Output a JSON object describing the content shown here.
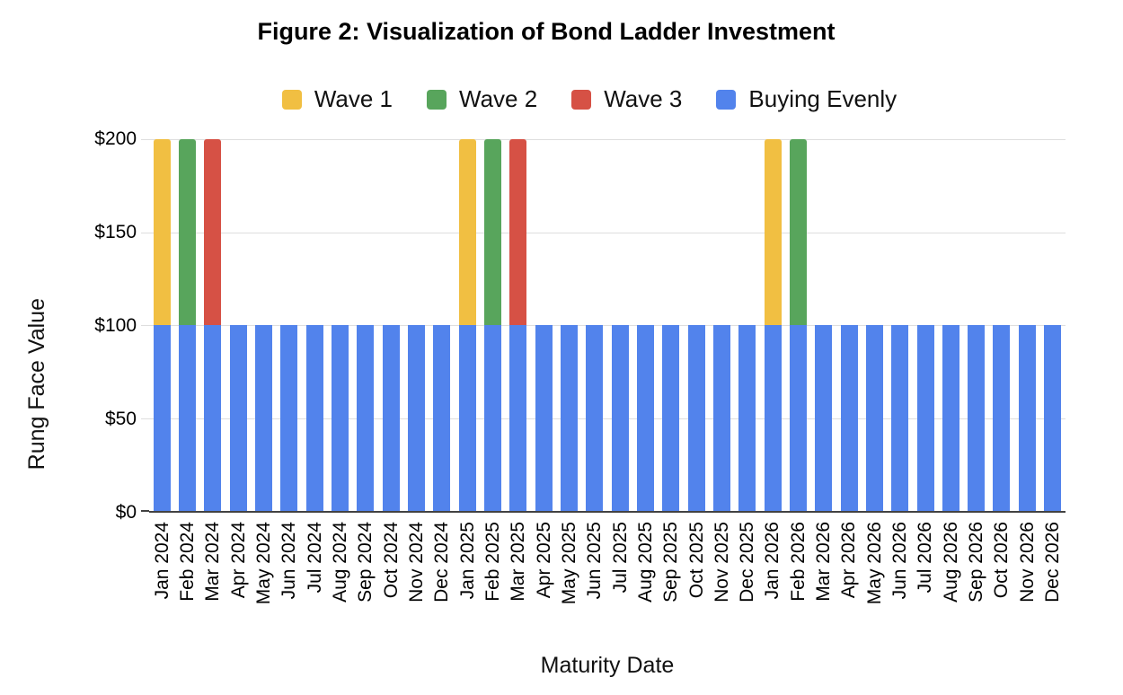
{
  "figure": {
    "title": "Figure 2: Visualization of Bond Ladder Investment"
  },
  "chart_data": {
    "type": "bar",
    "stacked": true,
    "title": "Figure 2: Visualization of Bond Ladder Investment",
    "xlabel": "Maturity Date",
    "ylabel": "Rung Face Value",
    "ylim": [
      0,
      200
    ],
    "ytick_labels": [
      "$0",
      "$50",
      "$100",
      "$150",
      "$200"
    ],
    "grid": true,
    "legend_position": "top",
    "categories": [
      "Jan 2024",
      "Feb 2024",
      "Mar 2024",
      "Apr 2024",
      "May 2024",
      "Jun 2024",
      "Jul 2024",
      "Aug 2024",
      "Sep 2024",
      "Oct 2024",
      "Nov 2024",
      "Dec 2024",
      "Jan 2025",
      "Feb 2025",
      "Mar 2025",
      "Apr 2025",
      "May 2025",
      "Jun 2025",
      "Jul 2025",
      "Aug 2025",
      "Sep 2025",
      "Oct 2025",
      "Nov 2025",
      "Dec 2025",
      "Jan 2026",
      "Feb 2026",
      "Mar 2026",
      "Apr 2026",
      "May 2026",
      "Jun 2026",
      "Jul 2026",
      "Aug 2026",
      "Sep 2026",
      "Oct 2026",
      "Nov 2026",
      "Dec 2026"
    ],
    "series": [
      {
        "name": "Wave 1",
        "color": "#F1BF42",
        "values": [
          100,
          0,
          0,
          0,
          0,
          0,
          0,
          0,
          0,
          0,
          0,
          0,
          100,
          0,
          0,
          0,
          0,
          0,
          0,
          0,
          0,
          0,
          0,
          0,
          100,
          0,
          0,
          0,
          0,
          0,
          0,
          0,
          0,
          0,
          0,
          0
        ]
      },
      {
        "name": "Wave 2",
        "color": "#58A55C",
        "values": [
          0,
          100,
          0,
          0,
          0,
          0,
          0,
          0,
          0,
          0,
          0,
          0,
          0,
          100,
          0,
          0,
          0,
          0,
          0,
          0,
          0,
          0,
          0,
          0,
          0,
          100,
          0,
          0,
          0,
          0,
          0,
          0,
          0,
          0,
          0,
          0
        ]
      },
      {
        "name": "Wave 3",
        "color": "#D65145",
        "values": [
          0,
          0,
          100,
          0,
          0,
          0,
          0,
          0,
          0,
          0,
          0,
          0,
          0,
          0,
          100,
          0,
          0,
          0,
          0,
          0,
          0,
          0,
          0,
          0,
          0,
          0,
          0,
          0,
          0,
          0,
          0,
          0,
          0,
          0,
          0,
          0
        ]
      },
      {
        "name": "Buying Evenly",
        "color": "#5283EC",
        "values": [
          100,
          100,
          100,
          100,
          100,
          100,
          100,
          100,
          100,
          100,
          100,
          100,
          100,
          100,
          100,
          100,
          100,
          100,
          100,
          100,
          100,
          100,
          100,
          100,
          100,
          100,
          100,
          100,
          100,
          100,
          100,
          100,
          100,
          100,
          100,
          100
        ]
      }
    ]
  },
  "colors": {
    "gridline": "#DEDEDE",
    "axis_line": "#424242",
    "text": "#000000"
  }
}
